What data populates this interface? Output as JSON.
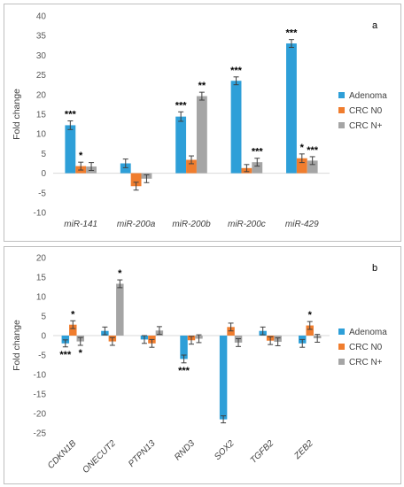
{
  "chart_data": [
    {
      "type": "bar",
      "panel_label": "a",
      "ylabel": "Fold change",
      "ylim": [
        -10,
        40
      ],
      "yticks": [
        -10,
        -5,
        0,
        5,
        10,
        15,
        20,
        25,
        30,
        35,
        40
      ],
      "categories": [
        "miR-141",
        "miR-200a",
        "miR-200b",
        "miR-200c",
        "miR-429"
      ],
      "series": [
        {
          "name": "Adenoma",
          "values": [
            12.2,
            2.5,
            14.4,
            23.5,
            33.0
          ],
          "errors": [
            1.1,
            1.1,
            1.2,
            1.0,
            1.0
          ],
          "stars": [
            "***",
            "",
            "***",
            "***",
            "***"
          ]
        },
        {
          "name": "CRC N0",
          "values": [
            1.8,
            -3.3,
            3.4,
            1.3,
            3.8
          ],
          "errors": [
            1.0,
            1.0,
            1.0,
            0.9,
            1.1
          ],
          "stars": [
            "*",
            "",
            "",
            "",
            "*"
          ]
        },
        {
          "name": "CRC N+",
          "values": [
            1.7,
            -1.4,
            19.6,
            2.8,
            3.2
          ],
          "errors": [
            1.0,
            1.0,
            1.0,
            1.0,
            1.0
          ],
          "stars": [
            "",
            "",
            "**",
            "***",
            "***"
          ]
        }
      ],
      "legend_position": "right",
      "grid": false
    },
    {
      "type": "bar",
      "panel_label": "b",
      "ylabel": "Fold change",
      "ylim": [
        -25,
        20
      ],
      "yticks": [
        -25,
        -20,
        -15,
        -10,
        -5,
        0,
        5,
        10,
        15,
        20
      ],
      "categories": [
        "CDKN1B",
        "ONECUT2",
        "PTPN13",
        "RND3",
        "SOX2",
        "TGFB2",
        "ZEB2"
      ],
      "series": [
        {
          "name": "Adenoma",
          "values": [
            -2.0,
            1.2,
            -1.0,
            -6.0,
            -21.5,
            1.2,
            -2.0
          ],
          "errors": [
            0.9,
            1.0,
            1.0,
            1.0,
            0.9,
            1.0,
            1.0
          ],
          "stars": [
            "***",
            "",
            "",
            "***",
            "",
            "",
            ""
          ]
        },
        {
          "name": "CRC N0",
          "values": [
            2.8,
            -1.5,
            -2.0,
            -1.2,
            2.2,
            -1.3,
            2.6
          ],
          "errors": [
            1.0,
            1.0,
            1.0,
            1.0,
            1.0,
            1.0,
            1.0
          ],
          "stars": [
            "*",
            "",
            "",
            "",
            "",
            "",
            "*"
          ]
        },
        {
          "name": "CRC N+",
          "values": [
            -1.5,
            13.3,
            1.3,
            -0.8,
            -1.8,
            -1.6,
            -0.7
          ],
          "errors": [
            1.0,
            1.0,
            1.0,
            1.0,
            1.0,
            1.0,
            1.0
          ],
          "stars": [
            "*",
            "*",
            "",
            "",
            "",
            "",
            ""
          ]
        }
      ],
      "legend_position": "right",
      "grid": false
    }
  ],
  "colors": {
    "Adenoma": "#2E9FD8",
    "CRC N0": "#F07D2E",
    "CRC N+": "#A5A5A5",
    "frame": "#BFBFBF",
    "axis": "#D9D9D9"
  }
}
